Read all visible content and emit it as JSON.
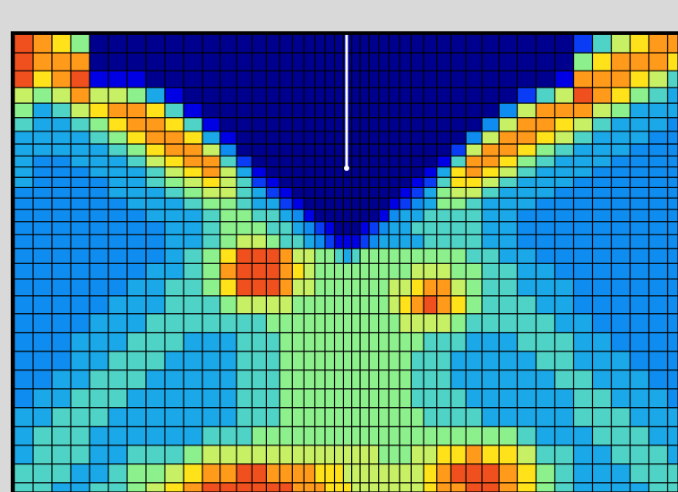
{
  "figure": {
    "kind": "colored finite-element mesh contour plot",
    "colors": {
      "background": "#d9d9d9",
      "frame": "#000000",
      "mesh_lines": "#000000",
      "crack": "#ffffff"
    },
    "colormap": [
      "#00008f",
      "#0000e5",
      "#0a3cf5",
      "#0f8cf0",
      "#1aa8e8",
      "#4fd3c6",
      "#8cf08c",
      "#c8f064",
      "#ffe21a",
      "#ff9a1a",
      "#f0501e"
    ]
  }
}
